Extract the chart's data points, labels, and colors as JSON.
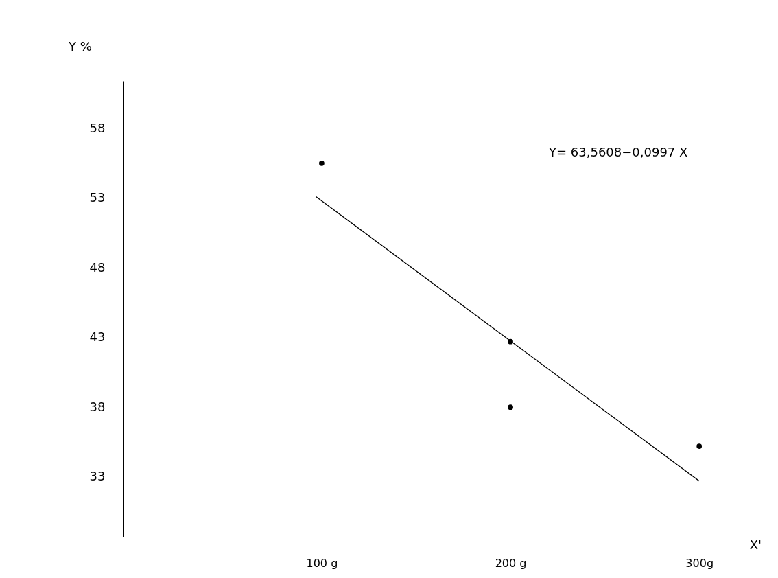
{
  "chart_data": {
    "type": "scatter",
    "ylabel": "Y %",
    "xlabel": "X'",
    "annotations": [
      "Y= 63,5608−0,0997 X"
    ],
    "xlim": [
      -5,
      333
    ],
    "ylim": [
      28.7,
      61.4
    ],
    "xticks": [
      {
        "value": 100,
        "label": "100 g"
      },
      {
        "value": 200,
        "label": "200 g"
      },
      {
        "value": 300,
        "label": "300g"
      }
    ],
    "yticks": [
      33,
      38,
      43,
      48,
      53,
      58
    ],
    "grid": false,
    "series": [
      {
        "marker": "circle",
        "color": "#000000",
        "x": [
          100,
          200,
          200,
          300
        ],
        "values": [
          55.5,
          42.7,
          38.0,
          35.2
        ]
      },
      {
        "type": "line",
        "marker": "none",
        "color": "#000000",
        "line_style": "solid",
        "x": [
          97,
          300
        ],
        "values": [
          53.1,
          32.7
        ]
      }
    ]
  }
}
